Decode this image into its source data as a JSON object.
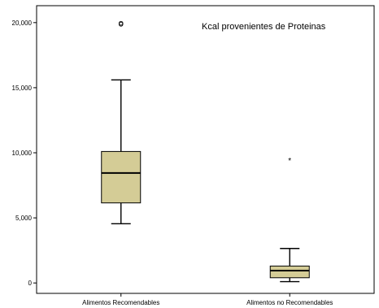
{
  "chart_data": {
    "type": "boxplot",
    "title": "Kcal provenientes de Proteinas",
    "xlabel": "",
    "ylabel": "",
    "categories": [
      "Alimentos  Recomendables",
      "Alimentos no Recomendables"
    ],
    "yticks": [
      "0",
      "5,000",
      "10,000",
      "15,000",
      "20,000"
    ],
    "yticks_values": [
      0,
      5000,
      10000,
      15000,
      20000
    ],
    "ylim": [
      -800,
      21300
    ],
    "grid": false,
    "box_fill": "#d4cc96",
    "boxes": [
      {
        "category": "Alimentos  Recomendables",
        "whisker_low": 4550,
        "q1": 6150,
        "median": 8450,
        "q3": 10100,
        "whisker_high": 15600,
        "outliers": [
          19950,
          19870
        ],
        "extremes": []
      },
      {
        "category": "Alimentos no Recomendables",
        "whisker_low": 100,
        "q1": 400,
        "median": 950,
        "q3": 1300,
        "whisker_high": 2650,
        "outliers": [],
        "extremes": [
          9450
        ]
      }
    ]
  }
}
